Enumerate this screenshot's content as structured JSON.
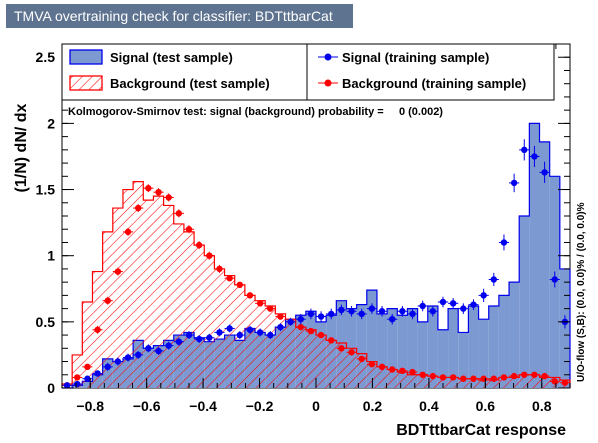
{
  "window": {
    "title": "TMVA overtraining check for classifier: BDTttbarCat"
  },
  "colors": {
    "title_bg": "#5d7390",
    "signal_fill": "#7d99d1",
    "signal_line": "#0000ee",
    "signal_points": "#0000ee",
    "background_line": "#ff0000",
    "background_points": "#ff0000"
  },
  "chart_data": {
    "type": "histogram",
    "xlabel": "BDTttbarCat response",
    "ylabel": "(1/N) dN/ dx",
    "xlim": [
      -0.9,
      0.9
    ],
    "ylim": [
      0,
      2.6
    ],
    "x_ticks": [
      -0.8,
      -0.6,
      -0.4,
      -0.2,
      0,
      0.2,
      0.4,
      0.6,
      0.8
    ],
    "x_tick_labels": [
      "−0.8",
      "−0.6",
      "−0.4",
      "−0.2",
      "0",
      "0.2",
      "0.4",
      "0.6",
      "0.8"
    ],
    "y_ticks": [
      0,
      0.5,
      1,
      1.5,
      2,
      2.5
    ],
    "y_tick_labels": [
      "0",
      "0.5",
      "1",
      "1.5",
      "2",
      "2.5"
    ],
    "bin_start": -0.9,
    "bin_width": 0.036,
    "legend": {
      "signal_test": "Signal (test sample)",
      "background_test": "Background (test sample)",
      "signal_train": "Signal (training sample)",
      "background_train": "Background (training sample)"
    },
    "ks_text": "Kolmogorov-Smirnov test: signal (background) probability =     0 (0.002)",
    "side_text": "U/O-flow (S,B): (0.0, 0.0)% / (0.0, 0.0)%",
    "series": [
      {
        "name": "Signal (test sample)",
        "kind": "filled-histogram",
        "values": [
          0.0,
          0.02,
          0.05,
          0.1,
          0.22,
          0.2,
          0.22,
          0.36,
          0.3,
          0.32,
          0.36,
          0.4,
          0.42,
          0.38,
          0.35,
          0.37,
          0.4,
          0.36,
          0.45,
          0.42,
          0.4,
          0.46,
          0.52,
          0.55,
          0.58,
          0.5,
          0.55,
          0.66,
          0.6,
          0.63,
          0.74,
          0.56,
          0.6,
          0.55,
          0.6,
          0.5,
          0.62,
          0.44,
          0.6,
          0.42,
          0.62,
          0.52,
          0.62,
          0.7,
          0.8,
          1.3,
          2.0,
          1.86,
          1.6,
          0.9
        ]
      },
      {
        "name": "Background (test sample)",
        "kind": "hatched-histogram",
        "values": [
          0.03,
          0.25,
          0.65,
          0.88,
          1.18,
          1.36,
          1.5,
          1.56,
          1.42,
          1.45,
          1.38,
          1.24,
          1.18,
          1.08,
          1.0,
          0.9,
          0.85,
          0.78,
          0.7,
          0.66,
          0.62,
          0.56,
          0.52,
          0.46,
          0.44,
          0.4,
          0.36,
          0.34,
          0.3,
          0.26,
          0.2,
          0.16,
          0.14,
          0.12,
          0.1,
          0.1,
          0.09,
          0.08,
          0.08,
          0.07,
          0.07,
          0.06,
          0.06,
          0.08,
          0.08,
          0.1,
          0.1,
          0.08,
          0.08,
          0.06
        ]
      },
      {
        "name": "Signal (training sample)",
        "kind": "points",
        "values": [
          0.02,
          0.03,
          0.07,
          0.11,
          0.16,
          0.2,
          0.23,
          0.25,
          0.3,
          0.28,
          0.32,
          0.35,
          0.4,
          0.37,
          0.38,
          0.42,
          0.45,
          0.4,
          0.44,
          0.42,
          0.4,
          0.46,
          0.5,
          0.52,
          0.56,
          0.54,
          0.56,
          0.59,
          0.58,
          0.56,
          0.6,
          0.58,
          0.52,
          0.58,
          0.56,
          0.62,
          0.58,
          0.65,
          0.64,
          0.6,
          0.63,
          0.7,
          0.82,
          1.1,
          1.55,
          1.8,
          1.75,
          1.63,
          0.82,
          0.5
        ],
        "errors": [
          0.01,
          0.02,
          0.02,
          0.02,
          0.03,
          0.03,
          0.03,
          0.03,
          0.03,
          0.03,
          0.03,
          0.03,
          0.03,
          0.03,
          0.03,
          0.03,
          0.03,
          0.03,
          0.03,
          0.03,
          0.03,
          0.03,
          0.03,
          0.04,
          0.04,
          0.04,
          0.04,
          0.04,
          0.04,
          0.04,
          0.04,
          0.04,
          0.04,
          0.04,
          0.04,
          0.04,
          0.04,
          0.04,
          0.04,
          0.04,
          0.04,
          0.05,
          0.05,
          0.06,
          0.07,
          0.08,
          0.08,
          0.08,
          0.06,
          0.05
        ]
      },
      {
        "name": "Background (training sample)",
        "kind": "points",
        "values": [
          0.02,
          0.08,
          0.16,
          0.44,
          0.66,
          0.88,
          1.18,
          1.36,
          1.51,
          1.48,
          1.44,
          1.32,
          1.2,
          1.08,
          1.0,
          0.9,
          0.83,
          0.78,
          0.7,
          0.64,
          0.6,
          0.54,
          0.5,
          0.46,
          0.43,
          0.4,
          0.36,
          0.3,
          0.27,
          0.22,
          0.18,
          0.16,
          0.14,
          0.13,
          0.12,
          0.1,
          0.09,
          0.08,
          0.08,
          0.07,
          0.07,
          0.07,
          0.07,
          0.08,
          0.09,
          0.1,
          0.1,
          0.09,
          0.05,
          0.04
        ],
        "errors": [
          0.01,
          0.02,
          0.02,
          0.03,
          0.03,
          0.03,
          0.03,
          0.03,
          0.03,
          0.03,
          0.03,
          0.03,
          0.03,
          0.03,
          0.03,
          0.03,
          0.02,
          0.02,
          0.02,
          0.02,
          0.02,
          0.02,
          0.02,
          0.02,
          0.02,
          0.02,
          0.02,
          0.02,
          0.02,
          0.02,
          0.02,
          0.02,
          0.01,
          0.01,
          0.01,
          0.01,
          0.01,
          0.01,
          0.01,
          0.01,
          0.01,
          0.01,
          0.01,
          0.01,
          0.01,
          0.01,
          0.01,
          0.01,
          0.01,
          0.01
        ]
      }
    ]
  }
}
